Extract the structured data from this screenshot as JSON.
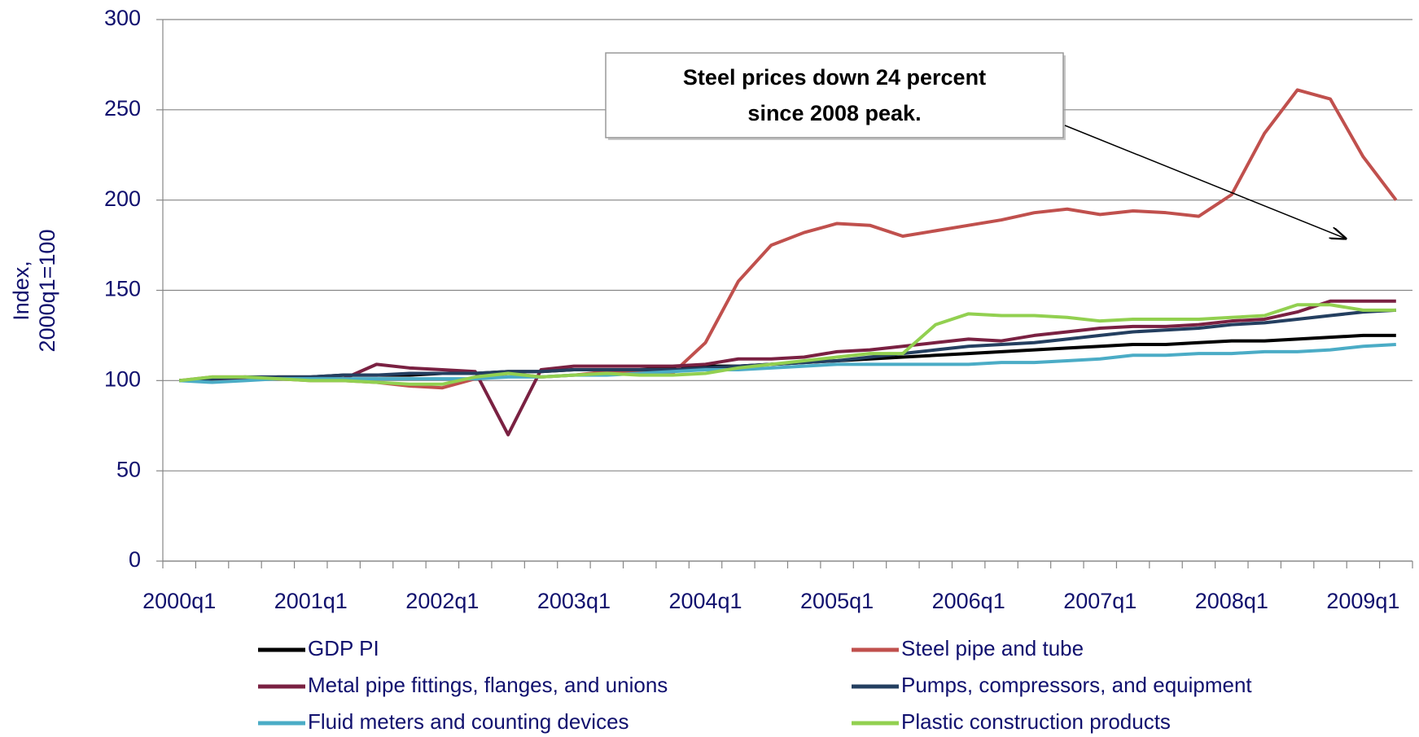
{
  "chart_data": {
    "type": "line",
    "ylabel": [
      "Index,",
      "2000q1=100"
    ],
    "annotation": [
      "Steel prices down 24 percent",
      "since 2008 peak."
    ],
    "categories": [
      "2000q1",
      null,
      null,
      null,
      "2001q1",
      null,
      null,
      null,
      "2002q1",
      null,
      null,
      null,
      "2003q1",
      null,
      null,
      null,
      "2004q1",
      null,
      null,
      null,
      "2005q1",
      null,
      null,
      null,
      "2006q1",
      null,
      null,
      null,
      "2007q1",
      null,
      null,
      null,
      "2008q1",
      null,
      null,
      null,
      "2009q1",
      null
    ],
    "ylim": [
      0,
      300
    ],
    "yticks": [
      0,
      50,
      100,
      150,
      200,
      250,
      300
    ],
    "grid": true,
    "series": [
      {
        "name": "GDP PI",
        "color": "#000000",
        "values": [
          100,
          101,
          101,
          102,
          102,
          103,
          103,
          103,
          104,
          104,
          105,
          105,
          106,
          106,
          106,
          107,
          108,
          108,
          109,
          110,
          111,
          112,
          113,
          114,
          115,
          116,
          117,
          118,
          119,
          120,
          120,
          121,
          122,
          122,
          123,
          124,
          125,
          125
        ]
      },
      {
        "name": "Steel pipe and tube",
        "color": "#c0504d",
        "values": [
          100,
          102,
          102,
          101,
          100,
          100,
          99,
          97,
          96,
          101,
          104,
          102,
          103,
          105,
          105,
          104,
          121,
          155,
          175,
          182,
          187,
          186,
          180,
          183,
          186,
          189,
          193,
          195,
          192,
          194,
          193,
          191,
          203,
          237,
          261,
          256,
          224,
          200
        ]
      },
      {
        "name": "Metal pipe fittings, flanges, and unions",
        "color": "#7a2142",
        "values": [
          100,
          101,
          101,
          101,
          101,
          101,
          109,
          107,
          106,
          105,
          70,
          106,
          108,
          108,
          108,
          108,
          109,
          112,
          112,
          113,
          116,
          117,
          119,
          121,
          123,
          122,
          125,
          127,
          129,
          130,
          130,
          131,
          133,
          134,
          138,
          144,
          144,
          144
        ]
      },
      {
        "name": "Pumps, compressors, and equipment",
        "color": "#243f60",
        "values": [
          100,
          101,
          102,
          102,
          102,
          103,
          103,
          104,
          104,
          104,
          105,
          105,
          106,
          106,
          106,
          106,
          107,
          108,
          109,
          110,
          111,
          113,
          115,
          117,
          119,
          120,
          121,
          123,
          125,
          127,
          128,
          129,
          131,
          132,
          134,
          136,
          138,
          139
        ]
      },
      {
        "name": "Fluid meters and counting devices",
        "color": "#4bacc6",
        "values": [
          100,
          99,
          100,
          101,
          101,
          101,
          101,
          101,
          101,
          101,
          102,
          102,
          103,
          103,
          104,
          105,
          106,
          106,
          107,
          108,
          109,
          109,
          109,
          109,
          109,
          110,
          110,
          111,
          112,
          114,
          114,
          115,
          115,
          116,
          116,
          117,
          119,
          120
        ]
      },
      {
        "name": "Plastic construction products",
        "color": "#92d050",
        "values": [
          100,
          102,
          102,
          101,
          100,
          100,
          99,
          98,
          98,
          102,
          104,
          102,
          103,
          104,
          103,
          103,
          104,
          107,
          109,
          111,
          113,
          115,
          115,
          131,
          137,
          136,
          136,
          135,
          133,
          134,
          134,
          134,
          135,
          136,
          142,
          142,
          139,
          139
        ]
      }
    ]
  }
}
